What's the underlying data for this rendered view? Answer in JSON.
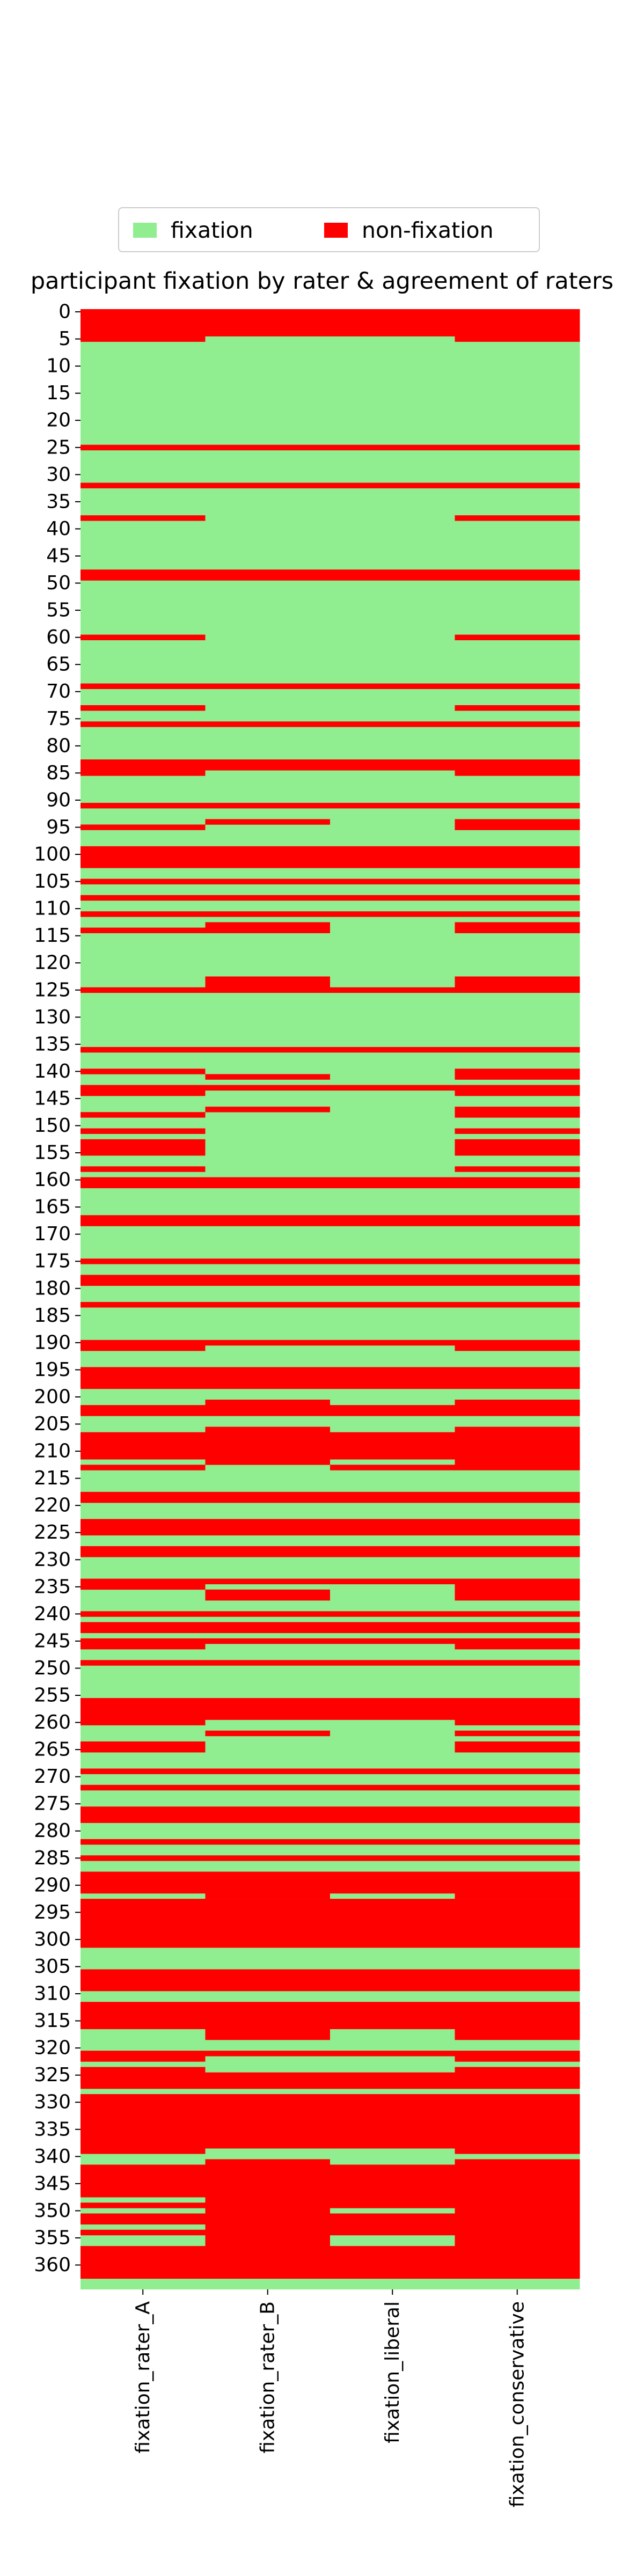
{
  "legend": {
    "items": [
      {
        "label": "fixation",
        "color": "#90ee90"
      },
      {
        "label": "non-fixation",
        "color": "#ff0000"
      }
    ]
  },
  "chart_data": {
    "type": "heatmap",
    "title": "participant fixation by rater & agreement of raters",
    "xlabel": "",
    "ylabel": "",
    "columns": [
      "fixation_rater_A",
      "fixation_rater_B",
      "fixation_liberal",
      "fixation_conservative"
    ],
    "row_count": 365,
    "y_tick_labels": [
      "0",
      "5",
      "10",
      "15",
      "20",
      "25",
      "30",
      "35",
      "40",
      "45",
      "50",
      "55",
      "60",
      "65",
      "70",
      "75",
      "80",
      "85",
      "90",
      "95",
      "100",
      "105",
      "110",
      "115",
      "120",
      "125",
      "130",
      "135",
      "140",
      "145",
      "150",
      "155",
      "160",
      "165",
      "170",
      "175",
      "180",
      "185",
      "190",
      "195",
      "200",
      "205",
      "210",
      "215",
      "220",
      "225",
      "230",
      "235",
      "240",
      "245",
      "250",
      "255",
      "260",
      "265",
      "270",
      "275",
      "280",
      "285",
      "290",
      "295",
      "300",
      "305",
      "310",
      "315",
      "320",
      "325",
      "330",
      "335",
      "340",
      "345",
      "350",
      "355",
      "360"
    ],
    "value_colors": {
      "fixation": "#90ee90",
      "non-fixation": "#ff0000"
    },
    "non_fixation_rows": {
      "fixation_rater_A": [
        "0-5",
        "25",
        "32",
        "38",
        "48-49",
        "60",
        "69",
        "73",
        "76",
        "83-85",
        "91",
        "95",
        "99-102",
        "105",
        "108",
        "111",
        "114",
        "125",
        "136",
        "140",
        "143-144",
        "148",
        "151",
        "153-155",
        "158",
        "160-161",
        "167-168",
        "175",
        "178-179",
        "183",
        "190-191",
        "195-198",
        "202-203",
        "207-211",
        "213",
        "218-219",
        "223-225",
        "228-229",
        "234-235",
        "240",
        "242-243",
        "245-246",
        "249",
        "256-260",
        "264-265",
        "269",
        "272",
        "276-278",
        "282",
        "285",
        "288-291",
        "293-301",
        "306-309",
        "312-316",
        "321-322",
        "324-327",
        "329-339",
        "342-347",
        "349",
        "351-352",
        "354",
        "357-362"
      ],
      "fixation_rater_B": [
        "0-4",
        "25",
        "32",
        "48-49",
        "69",
        "76",
        "83-84",
        "91",
        "94",
        "99-102",
        "105",
        "108",
        "111",
        "113-114",
        "123-125",
        "136",
        "141",
        "143",
        "147",
        "160-161",
        "167-168",
        "175",
        "178-179",
        "183",
        "190",
        "195-198",
        "201-203",
        "206-212",
        "218-219",
        "223-225",
        "228-229",
        "234",
        "236-237",
        "240",
        "242-243",
        "245",
        "249",
        "256-259",
        "262",
        "269",
        "272",
        "276-278",
        "282",
        "285",
        "288-292",
        "293-301",
        "306-309",
        "312-318",
        "321",
        "325-327",
        "329-338",
        "341-362"
      ],
      "fixation_rater_liberal": [
        "0-4",
        "25",
        "32",
        "48-49",
        "69",
        "76",
        "83-84",
        "91",
        "99-102",
        "105",
        "108",
        "111",
        "125",
        "136",
        "143",
        "160-161",
        "167-168",
        "175",
        "178-179",
        "183",
        "190",
        "195-198",
        "202-203",
        "207-211",
        "213",
        "218-219",
        "223-225",
        "228-229",
        "234",
        "240",
        "242-243",
        "245",
        "249",
        "256-259",
        "269",
        "272",
        "276-278",
        "282",
        "285",
        "288-291",
        "293-301",
        "306-309",
        "312-316",
        "321",
        "325-327",
        "329-338",
        "342-349",
        "351-354",
        "357-362"
      ],
      "fixation_rater_conservative": [
        "0-5",
        "25",
        "32",
        "38",
        "48-49",
        "60",
        "69",
        "73",
        "76",
        "83-85",
        "91",
        "94-95",
        "99-102",
        "105",
        "108",
        "111",
        "113-114",
        "123-125",
        "136",
        "140-141",
        "143-144",
        "147-148",
        "151",
        "153-155",
        "158",
        "160-161",
        "167-168",
        "175",
        "178-179",
        "183",
        "190-191",
        "195-198",
        "201-203",
        "206-212",
        "213",
        "218-219",
        "223-225",
        "228-229",
        "234-237",
        "240",
        "242-243",
        "245-246",
        "249",
        "256-260",
        "262",
        "264-265",
        "269",
        "272",
        "276-278",
        "282",
        "285",
        "288-292",
        "293-301",
        "306-309",
        "312-318",
        "321-322",
        "324-327",
        "329-339",
        "341-362"
      ]
    }
  }
}
